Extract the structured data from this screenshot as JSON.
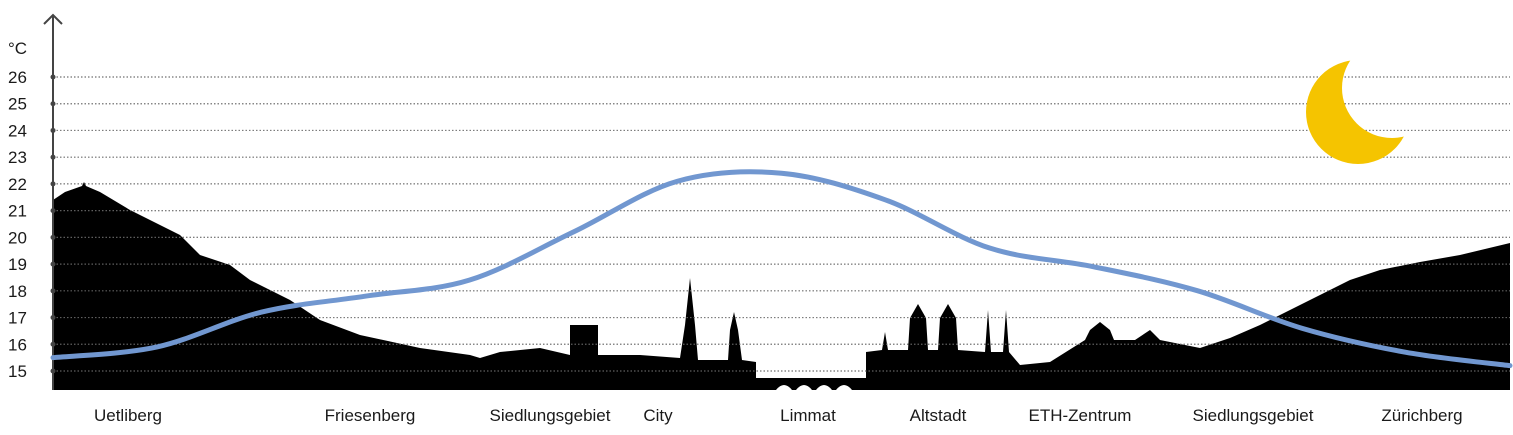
{
  "chart_data": {
    "type": "line",
    "title": "",
    "ylabel": "°C",
    "xlabel": "",
    "ylim": [
      15,
      26
    ],
    "yticks": [
      15,
      16,
      17,
      18,
      19,
      20,
      21,
      22,
      23,
      24,
      25,
      26
    ],
    "grid": true,
    "x_labels": [
      "Uetliberg",
      "Friesenberg",
      "Siedlungsgebiet",
      "City",
      "Limmat",
      "Altstadt",
      "ETH-Zentrum",
      "Siedlungsgebiet",
      "Zürichberg"
    ],
    "series": [
      {
        "values": [
          15.5,
          15.9,
          17.2,
          17.8,
          18.4,
          20.2,
          22.1,
          22.4,
          21.4,
          19.6,
          18.9,
          18.0,
          16.6,
          15.7,
          15.2
        ]
      }
    ],
    "colors": {
      "line": "#7197d0",
      "silhouette": "#000000",
      "moon": "#f5c400",
      "grid": "#9a9a9a"
    },
    "icons": [
      "moon-icon",
      "city-skyline-silhouette"
    ]
  }
}
